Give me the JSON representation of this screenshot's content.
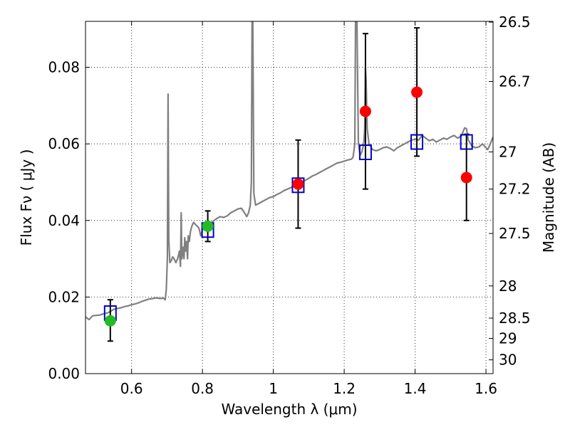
{
  "chart_data": {
    "type": "scatter",
    "title": "",
    "xlabel": "Wavelength  λ (μm)",
    "ylabel": "Flux  Fν  ( μJy )",
    "y2label": "Magnitude (AB)",
    "xlim": [
      0.47,
      1.62
    ],
    "ylim": [
      0.0,
      0.092
    ],
    "grid": true,
    "x_ticks": [
      0.6,
      0.8,
      1.0,
      1.2,
      1.4,
      1.6
    ],
    "x_tick_labels": [
      "0.6",
      "0.8",
      "1",
      "1.2",
      "1.4",
      "1.6"
    ],
    "y_ticks": [
      0.0,
      0.02,
      0.04,
      0.06,
      0.08
    ],
    "y_tick_labels": [
      "0.00",
      "0.02",
      "0.04",
      "0.06",
      "0.08"
    ],
    "y2_ticks": [
      {
        "label": "26.5",
        "flux": 0.0918
      },
      {
        "label": "26.7",
        "flux": 0.0763
      },
      {
        "label": "27",
        "flux": 0.0579
      },
      {
        "label": "27.2",
        "flux": 0.0482
      },
      {
        "label": "27.5",
        "flux": 0.0366
      },
      {
        "label": "28",
        "flux": 0.0229
      },
      {
        "label": "28.5",
        "flux": 0.0145
      },
      {
        "label": "29",
        "flux": 0.0092
      },
      {
        "label": "30",
        "flux": 0.0036
      }
    ],
    "series": [
      {
        "name": "model spectrum",
        "kind": "line",
        "color": "#808080",
        "points": [
          [
            0.47,
            0.0148
          ],
          [
            0.48,
            0.0141
          ],
          [
            0.49,
            0.0151
          ],
          [
            0.5,
            0.0152
          ],
          [
            0.51,
            0.0153
          ],
          [
            0.52,
            0.0156
          ],
          [
            0.53,
            0.0158
          ],
          [
            0.54,
            0.0162
          ],
          [
            0.55,
            0.0168
          ],
          [
            0.56,
            0.017
          ],
          [
            0.57,
            0.0172
          ],
          [
            0.58,
            0.0175
          ],
          [
            0.59,
            0.0177
          ],
          [
            0.6,
            0.018
          ],
          [
            0.61,
            0.0182
          ],
          [
            0.62,
            0.0185
          ],
          [
            0.63,
            0.0189
          ],
          [
            0.64,
            0.0192
          ],
          [
            0.65,
            0.0195
          ],
          [
            0.66,
            0.0196
          ],
          [
            0.67,
            0.0198
          ],
          [
            0.68,
            0.0196
          ],
          [
            0.69,
            0.0197
          ],
          [
            0.695,
            0.0193
          ],
          [
            0.698,
            0.022
          ],
          [
            0.701,
            0.03
          ],
          [
            0.703,
            0.073
          ],
          [
            0.705,
            0.035
          ],
          [
            0.708,
            0.029
          ],
          [
            0.712,
            0.0295
          ],
          [
            0.716,
            0.0305
          ],
          [
            0.72,
            0.03
          ],
          [
            0.725,
            0.029
          ],
          [
            0.73,
            0.03
          ],
          [
            0.735,
            0.032
          ],
          [
            0.738,
            0.028
          ],
          [
            0.74,
            0.042
          ],
          [
            0.742,
            0.03
          ],
          [
            0.745,
            0.033
          ],
          [
            0.748,
            0.03
          ],
          [
            0.75,
            0.0355
          ],
          [
            0.752,
            0.032
          ],
          [
            0.755,
            0.0345
          ],
          [
            0.758,
            0.03
          ],
          [
            0.76,
            0.036
          ],
          [
            0.763,
            0.0345
          ],
          [
            0.766,
            0.037
          ],
          [
            0.77,
            0.0385
          ],
          [
            0.775,
            0.0395
          ],
          [
            0.78,
            0.039
          ],
          [
            0.785,
            0.0385
          ],
          [
            0.79,
            0.038
          ],
          [
            0.795,
            0.036
          ],
          [
            0.8,
            0.0375
          ],
          [
            0.81,
            0.0382
          ],
          [
            0.82,
            0.0392
          ],
          [
            0.83,
            0.0398
          ],
          [
            0.84,
            0.0405
          ],
          [
            0.85,
            0.041
          ],
          [
            0.86,
            0.0408
          ],
          [
            0.87,
            0.0412
          ],
          [
            0.88,
            0.042
          ],
          [
            0.89,
            0.0425
          ],
          [
            0.9,
            0.043
          ],
          [
            0.91,
            0.0432
          ],
          [
            0.92,
            0.0418
          ],
          [
            0.925,
            0.041
          ],
          [
            0.93,
            0.042
          ],
          [
            0.935,
            0.044
          ],
          [
            0.938,
            0.05
          ],
          [
            0.94,
            0.092
          ],
          [
            0.942,
            0.092
          ],
          [
            0.945,
            0.047
          ],
          [
            0.95,
            0.044
          ],
          [
            0.96,
            0.0445
          ],
          [
            0.97,
            0.045
          ],
          [
            0.98,
            0.0455
          ],
          [
            0.99,
            0.046
          ],
          [
            1.0,
            0.0462
          ],
          [
            1.01,
            0.0468
          ],
          [
            1.02,
            0.0472
          ],
          [
            1.03,
            0.0478
          ],
          [
            1.04,
            0.0482
          ],
          [
            1.05,
            0.0486
          ],
          [
            1.06,
            0.049
          ],
          [
            1.07,
            0.0495
          ],
          [
            1.08,
            0.05
          ],
          [
            1.09,
            0.0505
          ],
          [
            1.1,
            0.051
          ],
          [
            1.11,
            0.0516
          ],
          [
            1.12,
            0.052
          ],
          [
            1.13,
            0.0525
          ],
          [
            1.14,
            0.053
          ],
          [
            1.15,
            0.0535
          ],
          [
            1.16,
            0.054
          ],
          [
            1.17,
            0.0545
          ],
          [
            1.18,
            0.055
          ],
          [
            1.19,
            0.0552
          ],
          [
            1.2,
            0.0555
          ],
          [
            1.21,
            0.0558
          ],
          [
            1.22,
            0.056
          ],
          [
            1.225,
            0.0565
          ],
          [
            1.23,
            0.06
          ],
          [
            1.232,
            0.092
          ],
          [
            1.236,
            0.092
          ],
          [
            1.24,
            0.06
          ],
          [
            1.245,
            0.057
          ],
          [
            1.25,
            0.058
          ],
          [
            1.255,
            0.06
          ],
          [
            1.258,
            0.064
          ],
          [
            1.26,
            0.08
          ],
          [
            1.262,
            0.076
          ],
          [
            1.265,
            0.064
          ],
          [
            1.27,
            0.06
          ],
          [
            1.28,
            0.0585
          ],
          [
            1.29,
            0.0582
          ],
          [
            1.3,
            0.0585
          ],
          [
            1.31,
            0.059
          ],
          [
            1.32,
            0.0592
          ],
          [
            1.33,
            0.0588
          ],
          [
            1.34,
            0.0582
          ],
          [
            1.35,
            0.059
          ],
          [
            1.36,
            0.0595
          ],
          [
            1.37,
            0.06
          ],
          [
            1.38,
            0.0605
          ],
          [
            1.39,
            0.061
          ],
          [
            1.4,
            0.0612
          ],
          [
            1.41,
            0.061
          ],
          [
            1.42,
            0.0622
          ],
          [
            1.43,
            0.0615
          ],
          [
            1.44,
            0.0608
          ],
          [
            1.45,
            0.0612
          ],
          [
            1.46,
            0.0605
          ],
          [
            1.47,
            0.061
          ],
          [
            1.48,
            0.0615
          ],
          [
            1.49,
            0.0612
          ],
          [
            1.5,
            0.0618
          ],
          [
            1.51,
            0.0622
          ],
          [
            1.52,
            0.0615
          ],
          [
            1.53,
            0.062
          ],
          [
            1.54,
            0.0642
          ],
          [
            1.545,
            0.064
          ],
          [
            1.55,
            0.061
          ],
          [
            1.56,
            0.0595
          ],
          [
            1.57,
            0.059
          ],
          [
            1.58,
            0.0592
          ],
          [
            1.59,
            0.06
          ],
          [
            1.6,
            0.059
          ],
          [
            1.605,
            0.0585
          ],
          [
            1.61,
            0.0595
          ],
          [
            1.62,
            0.0618
          ]
        ]
      },
      {
        "name": "model photometry",
        "kind": "open-square",
        "color": "#0000cc",
        "points": [
          [
            0.54,
            0.0158
          ],
          [
            0.815,
            0.0375
          ],
          [
            1.07,
            0.0492
          ],
          [
            1.26,
            0.0578
          ],
          [
            1.405,
            0.0605
          ],
          [
            1.545,
            0.0605
          ]
        ]
      },
      {
        "name": "observed (green)",
        "kind": "filled-circle",
        "color": "#22bb22",
        "points": [
          {
            "x": 0.54,
            "y": 0.0138,
            "lo": 0.0085,
            "hi": 0.0193
          },
          {
            "x": 0.815,
            "y": 0.0385,
            "lo": 0.0345,
            "hi": 0.0425
          }
        ]
      },
      {
        "name": "observed (red)",
        "kind": "filled-circle",
        "color": "#ff0000",
        "points": [
          {
            "x": 1.07,
            "y": 0.0495,
            "lo": 0.038,
            "hi": 0.061
          },
          {
            "x": 1.26,
            "y": 0.0685,
            "lo": 0.0482,
            "hi": 0.0888
          },
          {
            "x": 1.405,
            "y": 0.0735,
            "lo": 0.0568,
            "hi": 0.0903
          },
          {
            "x": 1.545,
            "y": 0.0512,
            "lo": 0.04,
            "hi": 0.0625
          }
        ]
      }
    ]
  }
}
